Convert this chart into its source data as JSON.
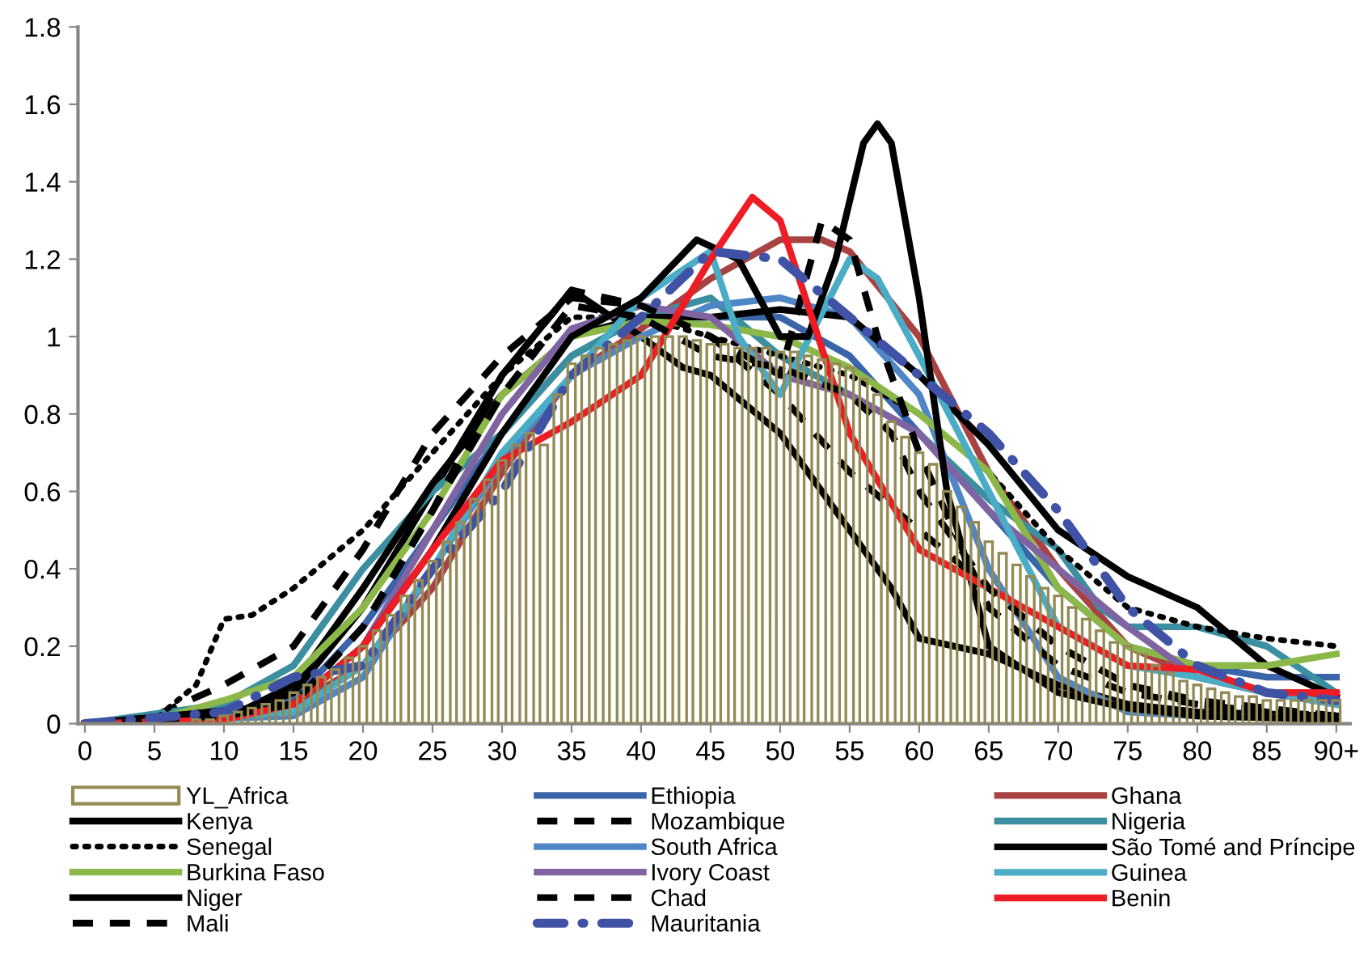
{
  "chart_data": {
    "type": "line",
    "xlim": [
      -0.5,
      91
    ],
    "ylim": [
      0,
      1.8
    ],
    "xticks": [
      0,
      5,
      10,
      15,
      20,
      25,
      30,
      35,
      40,
      45,
      50,
      55,
      60,
      65,
      70,
      75,
      80,
      85,
      {
        "value": 90,
        "label": "90+"
      }
    ],
    "yticks": [
      0,
      0.2,
      0.4,
      0.6,
      0.8,
      1,
      1.2,
      1.4,
      1.6,
      1.8
    ],
    "grid": false,
    "legend": "bottom",
    "series": [
      {
        "name": "YL_Africa",
        "type": "bar",
        "color": "#948a54",
        "x": [
          0,
          1,
          2,
          3,
          4,
          5,
          6,
          7,
          8,
          9,
          10,
          11,
          12,
          13,
          14,
          15,
          16,
          17,
          18,
          19,
          20,
          21,
          22,
          23,
          24,
          25,
          26,
          27,
          28,
          29,
          30,
          31,
          32,
          33,
          34,
          35,
          36,
          37,
          38,
          39,
          40,
          41,
          42,
          43,
          44,
          45,
          46,
          47,
          48,
          49,
          50,
          51,
          52,
          53,
          54,
          55,
          56,
          57,
          58,
          59,
          60,
          61,
          62,
          63,
          64,
          65,
          66,
          67,
          68,
          69,
          70,
          71,
          72,
          73,
          74,
          75,
          76,
          77,
          78,
          79,
          80,
          81,
          82,
          83,
          84,
          85,
          86,
          87,
          88,
          89,
          90
        ],
        "values": [
          0,
          0,
          0,
          0,
          0,
          0,
          0,
          0,
          0.01,
          0.01,
          0.02,
          0.03,
          0.04,
          0.05,
          0.06,
          0.08,
          0.1,
          0.12,
          0.14,
          0.17,
          0.2,
          0.24,
          0.28,
          0.33,
          0.37,
          0.42,
          0.47,
          0.52,
          0.58,
          0.63,
          0.68,
          0.72,
          0.75,
          0.72,
          0.85,
          0.93,
          0.95,
          0.97,
          0.98,
          0.99,
          1,
          1,
          1,
          1,
          0.99,
          0.98,
          0.98,
          0.97,
          0.97,
          0.97,
          0.96,
          0.96,
          0.95,
          0.94,
          0.93,
          0.92,
          0.89,
          0.85,
          0.78,
          0.74,
          0.7,
          0.67,
          0.6,
          0.56,
          0.52,
          0.47,
          0.44,
          0.41,
          0.38,
          0.35,
          0.33,
          0.3,
          0.27,
          0.24,
          0.21,
          0.2,
          0.18,
          0.15,
          0.13,
          0.11,
          0.1,
          0.09,
          0.08,
          0.07,
          0.07,
          0.06,
          0.06,
          0.06,
          0.06,
          0.06,
          0.06
        ]
      },
      {
        "name": "Ethiopia",
        "color": "#3a65a8",
        "line_style": "solid",
        "x": [
          0,
          5,
          10,
          15,
          20,
          25,
          30,
          35,
          40,
          45,
          50,
          55,
          60,
          65,
          70,
          75,
          80,
          85,
          90
        ],
        "values": [
          0,
          0,
          0.02,
          0.06,
          0.25,
          0.5,
          0.75,
          0.95,
          1.05,
          1.05,
          1.05,
          0.95,
          0.75,
          0.55,
          0.35,
          0.2,
          0.15,
          0.12,
          0.12
        ]
      },
      {
        "name": "Ghana",
        "color": "#a94343",
        "line_style": "solid",
        "x": [
          0,
          10,
          15,
          20,
          25,
          30,
          35,
          40,
          45,
          50,
          53,
          55,
          60,
          65,
          70,
          75,
          80,
          85,
          90
        ],
        "values": [
          0,
          0.01,
          0.05,
          0.15,
          0.35,
          0.65,
          0.9,
          1.02,
          1.15,
          1.25,
          1.25,
          1.22,
          1,
          0.65,
          0.4,
          0.2,
          0.12,
          0.08,
          0.06
        ]
      },
      {
        "name": "Kenya",
        "color": "#000000",
        "line_style": "solid",
        "x": [
          0,
          10,
          15,
          20,
          25,
          30,
          35,
          40,
          43,
          45,
          50,
          55,
          58,
          60,
          65,
          70,
          75,
          80,
          90
        ],
        "values": [
          0,
          0.01,
          0.08,
          0.3,
          0.6,
          0.9,
          1.12,
          1,
          0.92,
          0.9,
          0.75,
          0.5,
          0.35,
          0.22,
          0.18,
          0.1,
          0.05,
          0.03,
          0.02
        ]
      },
      {
        "name": "Mozambique",
        "color": "#000000",
        "line_style": "dashed",
        "x": [
          0,
          5,
          10,
          15,
          20,
          25,
          30,
          35,
          40,
          45,
          50,
          55,
          60,
          65,
          70,
          75,
          80,
          85,
          90
        ],
        "values": [
          0,
          0.02,
          0.1,
          0.2,
          0.45,
          0.75,
          0.95,
          1.1,
          1.08,
          1,
          0.85,
          0.65,
          0.5,
          0.35,
          0.2,
          0.1,
          0.06,
          0.04,
          0.02
        ]
      },
      {
        "name": "Nigeria",
        "color": "#3b8fa0",
        "line_style": "solid",
        "x": [
          0,
          10,
          15,
          20,
          25,
          30,
          35,
          40,
          45,
          50,
          55,
          60,
          65,
          70,
          73,
          75,
          80,
          85,
          90
        ],
        "values": [
          0,
          0.05,
          0.15,
          0.4,
          0.6,
          0.75,
          0.95,
          1.05,
          1.1,
          0.95,
          0.85,
          0.75,
          0.58,
          0.45,
          0.3,
          0.25,
          0.25,
          0.2,
          0.08
        ]
      },
      {
        "name": "Senegal",
        "color": "#000000",
        "line_style": "dotted",
        "x": [
          0,
          5,
          8,
          10,
          12,
          15,
          20,
          25,
          30,
          35,
          40,
          45,
          50,
          55,
          60,
          65,
          70,
          75,
          80,
          85,
          90
        ],
        "values": [
          0,
          0.01,
          0.1,
          0.27,
          0.28,
          0.35,
          0.5,
          0.7,
          0.9,
          1.05,
          1.05,
          1,
          0.95,
          0.9,
          0.8,
          0.65,
          0.45,
          0.3,
          0.25,
          0.22,
          0.2
        ]
      },
      {
        "name": "South Africa",
        "color": "#4f86c6",
        "line_style": "solid",
        "x": [
          0,
          15,
          20,
          25,
          30,
          35,
          40,
          45,
          50,
          55,
          60,
          65,
          70,
          75,
          80,
          90
        ],
        "values": [
          0,
          0.02,
          0.12,
          0.4,
          0.68,
          0.9,
          1,
          1.08,
          1.1,
          1.05,
          0.85,
          0.4,
          0.12,
          0.03,
          0.02,
          0.01
        ]
      },
      {
        "name": "São Tomé and Príncipe",
        "color": "#000000",
        "line_style": "solid",
        "x": [
          0,
          10,
          15,
          20,
          25,
          30,
          35,
          40,
          45,
          50,
          55,
          60,
          65,
          70,
          75,
          80,
          85,
          90
        ],
        "values": [
          0,
          0.01,
          0.1,
          0.35,
          0.62,
          0.85,
          1,
          1.05,
          1.05,
          1.07,
          1.05,
          0.9,
          0.72,
          0.5,
          0.38,
          0.3,
          0.15,
          0.07
        ]
      },
      {
        "name": "Burkina Faso",
        "color": "#8cb84a",
        "line_style": "solid",
        "x": [
          0,
          5,
          10,
          15,
          20,
          25,
          30,
          35,
          40,
          45,
          50,
          55,
          60,
          65,
          70,
          75,
          80,
          85,
          90
        ],
        "values": [
          0,
          0.01,
          0.06,
          0.12,
          0.3,
          0.55,
          0.85,
          1,
          1.04,
          1.03,
          1,
          0.92,
          0.8,
          0.65,
          0.35,
          0.2,
          0.15,
          0.15,
          0.18
        ]
      },
      {
        "name": "Ivory Coast",
        "color": "#8064a2",
        "line_style": "solid",
        "x": [
          0,
          15,
          20,
          25,
          30,
          35,
          40,
          45,
          50,
          55,
          60,
          65,
          70,
          75,
          80,
          85,
          90
        ],
        "values": [
          0,
          0.05,
          0.2,
          0.5,
          0.8,
          1.02,
          1.08,
          1.05,
          0.9,
          0.85,
          0.75,
          0.55,
          0.4,
          0.25,
          0.12,
          0.08,
          0.05
        ]
      },
      {
        "name": "Guinea",
        "color": "#4bacc6",
        "line_style": "solid",
        "x": [
          0,
          15,
          20,
          25,
          30,
          35,
          40,
          45,
          47,
          50,
          55,
          57,
          60,
          65,
          70,
          75,
          80,
          85,
          90
        ],
        "values": [
          0,
          0.03,
          0.15,
          0.4,
          0.7,
          0.9,
          1.1,
          1.22,
          1,
          0.85,
          1.2,
          1.15,
          0.95,
          0.6,
          0.25,
          0.15,
          0.12,
          0.08,
          0.05
        ]
      },
      {
        "name": "Niger",
        "color": "#000000",
        "line_style": "solid",
        "x": [
          0,
          15,
          20,
          25,
          30,
          35,
          40,
          44,
          47,
          50,
          52,
          54,
          56,
          57,
          58,
          60,
          62,
          65,
          70,
          75,
          80,
          90
        ],
        "values": [
          0,
          0.05,
          0.2,
          0.45,
          0.75,
          1,
          1.1,
          1.25,
          1.2,
          1,
          1,
          1.2,
          1.5,
          1.55,
          1.5,
          1.1,
          0.6,
          0.2,
          0.08,
          0.04,
          0.02,
          0.01
        ]
      },
      {
        "name": "Chad",
        "color": "#000000",
        "line_style": "dashed",
        "x": [
          0,
          15,
          20,
          25,
          30,
          35,
          40,
          45,
          50,
          53,
          55,
          57,
          60,
          65,
          70,
          75,
          80,
          85,
          90
        ],
        "values": [
          0,
          0.05,
          0.25,
          0.55,
          0.9,
          1.12,
          1.08,
          1,
          0.9,
          1.3,
          1.25,
          1,
          0.7,
          0.3,
          0.15,
          0.08,
          0.05,
          0.03,
          0.02
        ]
      },
      {
        "name": "Benin",
        "color": "#ee1c25",
        "line_style": "solid",
        "x": [
          0,
          10,
          15,
          20,
          25,
          30,
          35,
          40,
          45,
          48,
          50,
          55,
          60,
          65,
          70,
          75,
          80,
          85,
          90
        ],
        "values": [
          0,
          0.01,
          0.05,
          0.2,
          0.45,
          0.68,
          0.78,
          0.9,
          1.2,
          1.36,
          1.3,
          0.75,
          0.45,
          0.35,
          0.25,
          0.15,
          0.14,
          0.08,
          0.08
        ]
      },
      {
        "name": "Mali",
        "color": "#000000",
        "line_style": "dashed",
        "x": [
          0,
          5,
          10,
          15,
          20,
          25,
          30,
          35,
          40,
          45,
          50,
          55,
          58,
          60,
          65,
          70,
          75,
          80,
          85,
          90
        ],
        "values": [
          0,
          0.01,
          0.02,
          0.05,
          0.25,
          0.55,
          0.85,
          1.08,
          1.05,
          0.95,
          0.92,
          0.85,
          0.75,
          0.6,
          0.35,
          0.2,
          0.1,
          0.05,
          0.03,
          0.02
        ]
      },
      {
        "name": "Mauritania",
        "color": "#3f52a5",
        "line_style": "dash_dot",
        "x": [
          0,
          10,
          15,
          20,
          25,
          30,
          35,
          40,
          45,
          50,
          55,
          60,
          65,
          70,
          72,
          75,
          80,
          85,
          90
        ],
        "values": [
          0,
          0.03,
          0.12,
          0.15,
          0.4,
          0.6,
          0.9,
          1.05,
          1.22,
          1.2,
          1.05,
          0.9,
          0.75,
          0.55,
          0.45,
          0.3,
          0.15,
          0.08,
          0.06
        ]
      }
    ]
  }
}
